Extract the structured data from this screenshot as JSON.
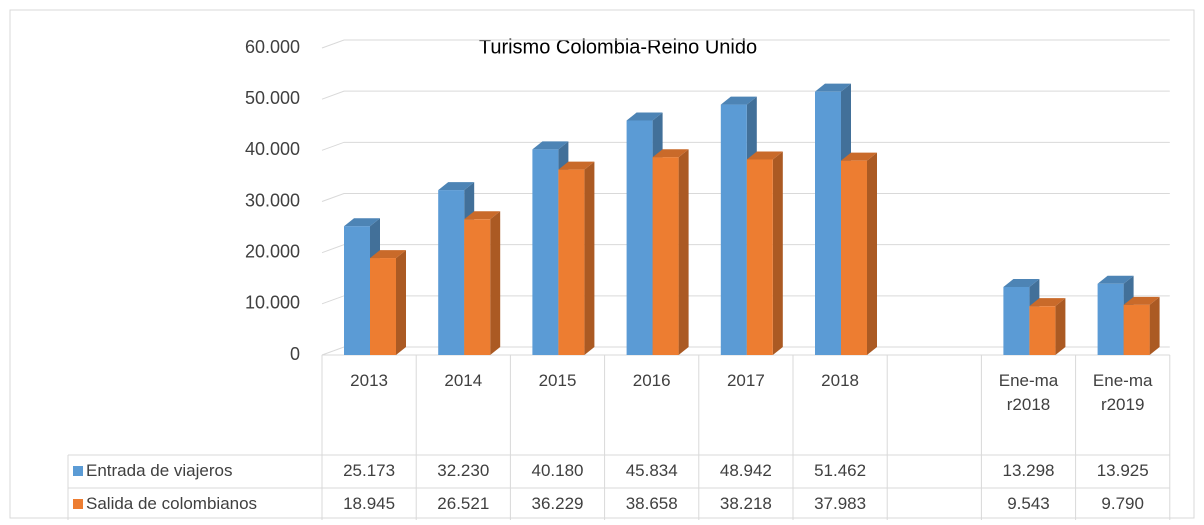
{
  "chart_data": {
    "type": "bar3d",
    "title": "Turismo Colombia-Reino Unido",
    "categories": [
      "2013",
      "2014",
      "2015",
      "2016",
      "2017",
      "2018",
      null,
      "Ene-mar2018",
      "Ene-mar2019"
    ],
    "series": [
      {
        "name": "Entrada de viajeros",
        "color": "#5b9bd5",
        "values": [
          25173,
          32230,
          40180,
          45834,
          48942,
          51462,
          null,
          13298,
          13925
        ],
        "value_labels": [
          "25.173",
          "32.230",
          "40.180",
          "45.834",
          "48.942",
          "51.462",
          null,
          "13.298",
          "13.925"
        ]
      },
      {
        "name": "Salida de colombianos",
        "color": "#ed7d31",
        "values": [
          18945,
          26521,
          36229,
          38658,
          38218,
          37983,
          null,
          9543,
          9790
        ],
        "value_labels": [
          "18.945",
          "26.521",
          "36.229",
          "38.658",
          "38.218",
          "37.983",
          null,
          "9.543",
          "9.790"
        ]
      }
    ],
    "ylim": [
      0,
      60000
    ],
    "yticks": [
      0,
      {
        "value": 10000,
        "label": "10.000"
      },
      {
        "value": 20000,
        "label": "20.000"
      },
      {
        "value": 30000,
        "label": "30.000"
      },
      {
        "value": 40000,
        "label": "40.000"
      },
      {
        "value": 50000,
        "label": "50.000"
      },
      {
        "value": 60000,
        "label": "60.000"
      }
    ],
    "grid": true
  }
}
